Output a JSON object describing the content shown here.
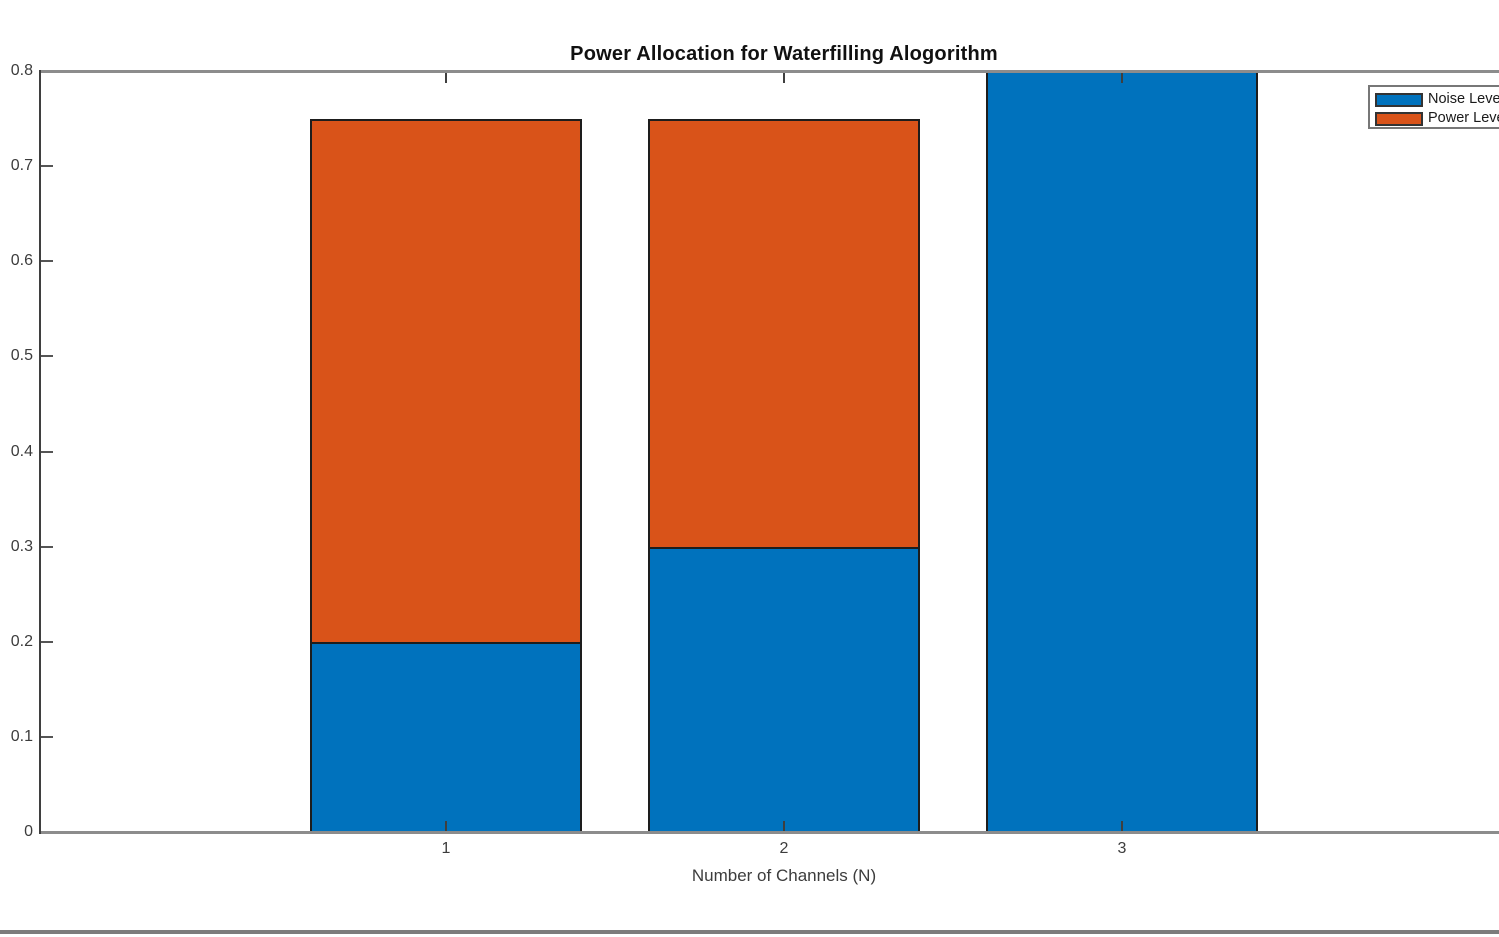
{
  "figure": {
    "background": "#ffffff"
  },
  "chart_data": {
    "type": "bar",
    "stacked": true,
    "title": "Power Allocation for Waterfilling Alogorithm",
    "xlabel": "Number of Channels (N)",
    "ylabel": "",
    "categories": [
      "1",
      "2",
      "3"
    ],
    "series": [
      {
        "name": "Noise Level",
        "color": "#0072BD",
        "values": [
          0.2,
          0.3,
          0.8
        ]
      },
      {
        "name": "Power Level",
        "color": "#D95319",
        "values": [
          0.55,
          0.45,
          0.0
        ]
      }
    ],
    "ylim": [
      0,
      0.8
    ],
    "yticks": [
      0,
      0.1,
      0.2,
      0.3,
      0.4,
      0.5,
      0.6,
      0.7,
      0.8
    ],
    "ytick_labels": [
      "0",
      "0.1",
      "0.2",
      "0.3",
      "0.4",
      "0.5",
      "0.6",
      "0.7",
      "0.8"
    ],
    "xtick_labels": [
      "1",
      "2",
      "3"
    ],
    "grid": false,
    "legend_position": "northeast",
    "legend_clipped_at_right_edge": true,
    "bar_edge_color": "#1d1d1d",
    "axis_box_color": "#8c8c8c",
    "tick_color": "#3f3f3f",
    "tick_label_color": "#3c3c3c",
    "title_color": "#111111"
  }
}
